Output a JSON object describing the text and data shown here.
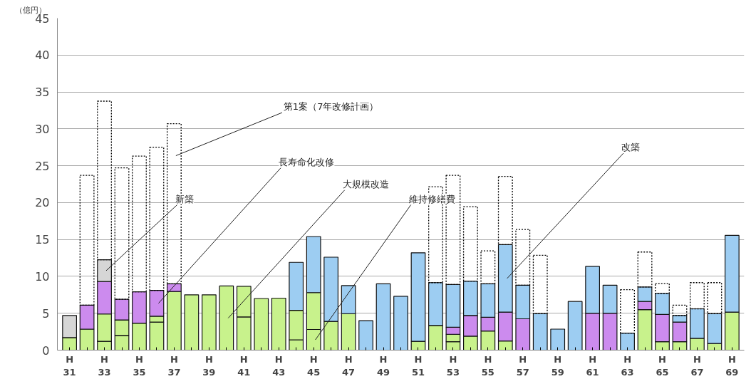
{
  "chart_data": {
    "type": "bar",
    "stacked": true,
    "ylabel": "（億円）",
    "categories": [
      "H\n31",
      null,
      "H\n33",
      null,
      "H\n35",
      null,
      "H\n37",
      null,
      "H\n39",
      null,
      "H\n41",
      null,
      "H\n43",
      null,
      "H\n45",
      null,
      "H\n47",
      null,
      "H\n49",
      null,
      "H\n51",
      null,
      "H\n53",
      null,
      "H\n55",
      null,
      "H\n57",
      null,
      "H\n59",
      null,
      "H\n61",
      null,
      "H\n63",
      null,
      "H\n65",
      null,
      "H\n67",
      null,
      "H\n69"
    ],
    "series": [
      {
        "name": "維持修繕費",
        "color": "#c8f28c",
        "values": [
          null,
          null,
          1.2,
          2.0,
          null,
          3.8,
          null,
          null,
          null,
          null,
          4.5,
          null,
          null,
          1.4,
          2.8,
          null,
          null,
          null,
          null,
          null,
          null,
          null,
          1.15,
          null,
          null,
          null,
          null,
          null,
          null,
          null,
          null,
          null,
          null,
          null,
          null,
          null,
          null,
          null,
          null
        ]
      },
      {
        "name": "大規模改造",
        "color": "#c8f28c",
        "values": [
          1.7,
          2.85,
          3.7,
          2.1,
          3.65,
          0.8,
          7.95,
          7.5,
          7.5,
          8.7,
          4.15,
          7.0,
          7.05,
          4.0,
          5.0,
          3.9,
          4.95,
          null,
          null,
          null,
          1.2,
          3.35,
          1.0,
          1.9,
          2.6,
          1.25,
          null,
          null,
          null,
          null,
          null,
          null,
          null,
          5.5,
          1.15,
          1.15,
          1.6,
          0.9,
          5.15
        ]
      },
      {
        "name": "長寿命化改修",
        "color": "#cc8bee",
        "values": [
          null,
          3.25,
          4.4,
          2.8,
          4.25,
          3.5,
          1.05,
          null,
          null,
          null,
          null,
          null,
          null,
          null,
          null,
          null,
          null,
          null,
          null,
          null,
          null,
          null,
          0.95,
          2.8,
          1.85,
          3.9,
          4.25,
          null,
          null,
          null,
          5.0,
          5.0,
          null,
          1.1,
          3.7,
          2.65,
          null,
          null,
          null
        ]
      },
      {
        "name": "改築",
        "color": "#9dcdf2",
        "values": [
          null,
          null,
          null,
          null,
          null,
          null,
          null,
          null,
          null,
          null,
          null,
          null,
          null,
          6.5,
          7.6,
          8.7,
          3.8,
          4.0,
          9.0,
          7.3,
          12.0,
          5.8,
          5.8,
          4.65,
          4.55,
          9.15,
          4.55,
          4.95,
          2.85,
          6.6,
          6.35,
          3.8,
          2.3,
          1.95,
          2.85,
          0.9,
          4.0,
          4.05,
          10.4
        ]
      },
      {
        "name": "新築",
        "color": "#d6d6d6",
        "values": [
          3.0,
          null,
          2.95,
          null,
          null,
          null,
          null,
          null,
          null,
          null,
          null,
          null,
          null,
          null,
          null,
          null,
          null,
          null,
          null,
          null,
          null,
          null,
          null,
          null,
          null,
          null,
          null,
          null,
          null,
          null,
          null,
          null,
          null,
          null,
          null,
          null,
          null,
          null,
          null
        ]
      },
      {
        "name": "第1案（7年改修計画）",
        "color": "#000000",
        "line_style": "dashed",
        "values": [
          null,
          17.6,
          21.5,
          17.8,
          18.4,
          19.4,
          21.7,
          null,
          null,
          null,
          null,
          null,
          null,
          null,
          null,
          null,
          null,
          null,
          null,
          null,
          null,
          13.0,
          14.8,
          10.1,
          4.45,
          9.25,
          7.55,
          7.9,
          null,
          null,
          null,
          null,
          5.9,
          4.75,
          1.35,
          1.4,
          3.55,
          4.2,
          null
        ]
      }
    ],
    "ylim": [
      0,
      45
    ],
    "yticks": [
      0,
      5,
      10,
      15,
      20,
      25,
      30,
      35,
      40,
      45
    ],
    "grid": "y"
  }
}
